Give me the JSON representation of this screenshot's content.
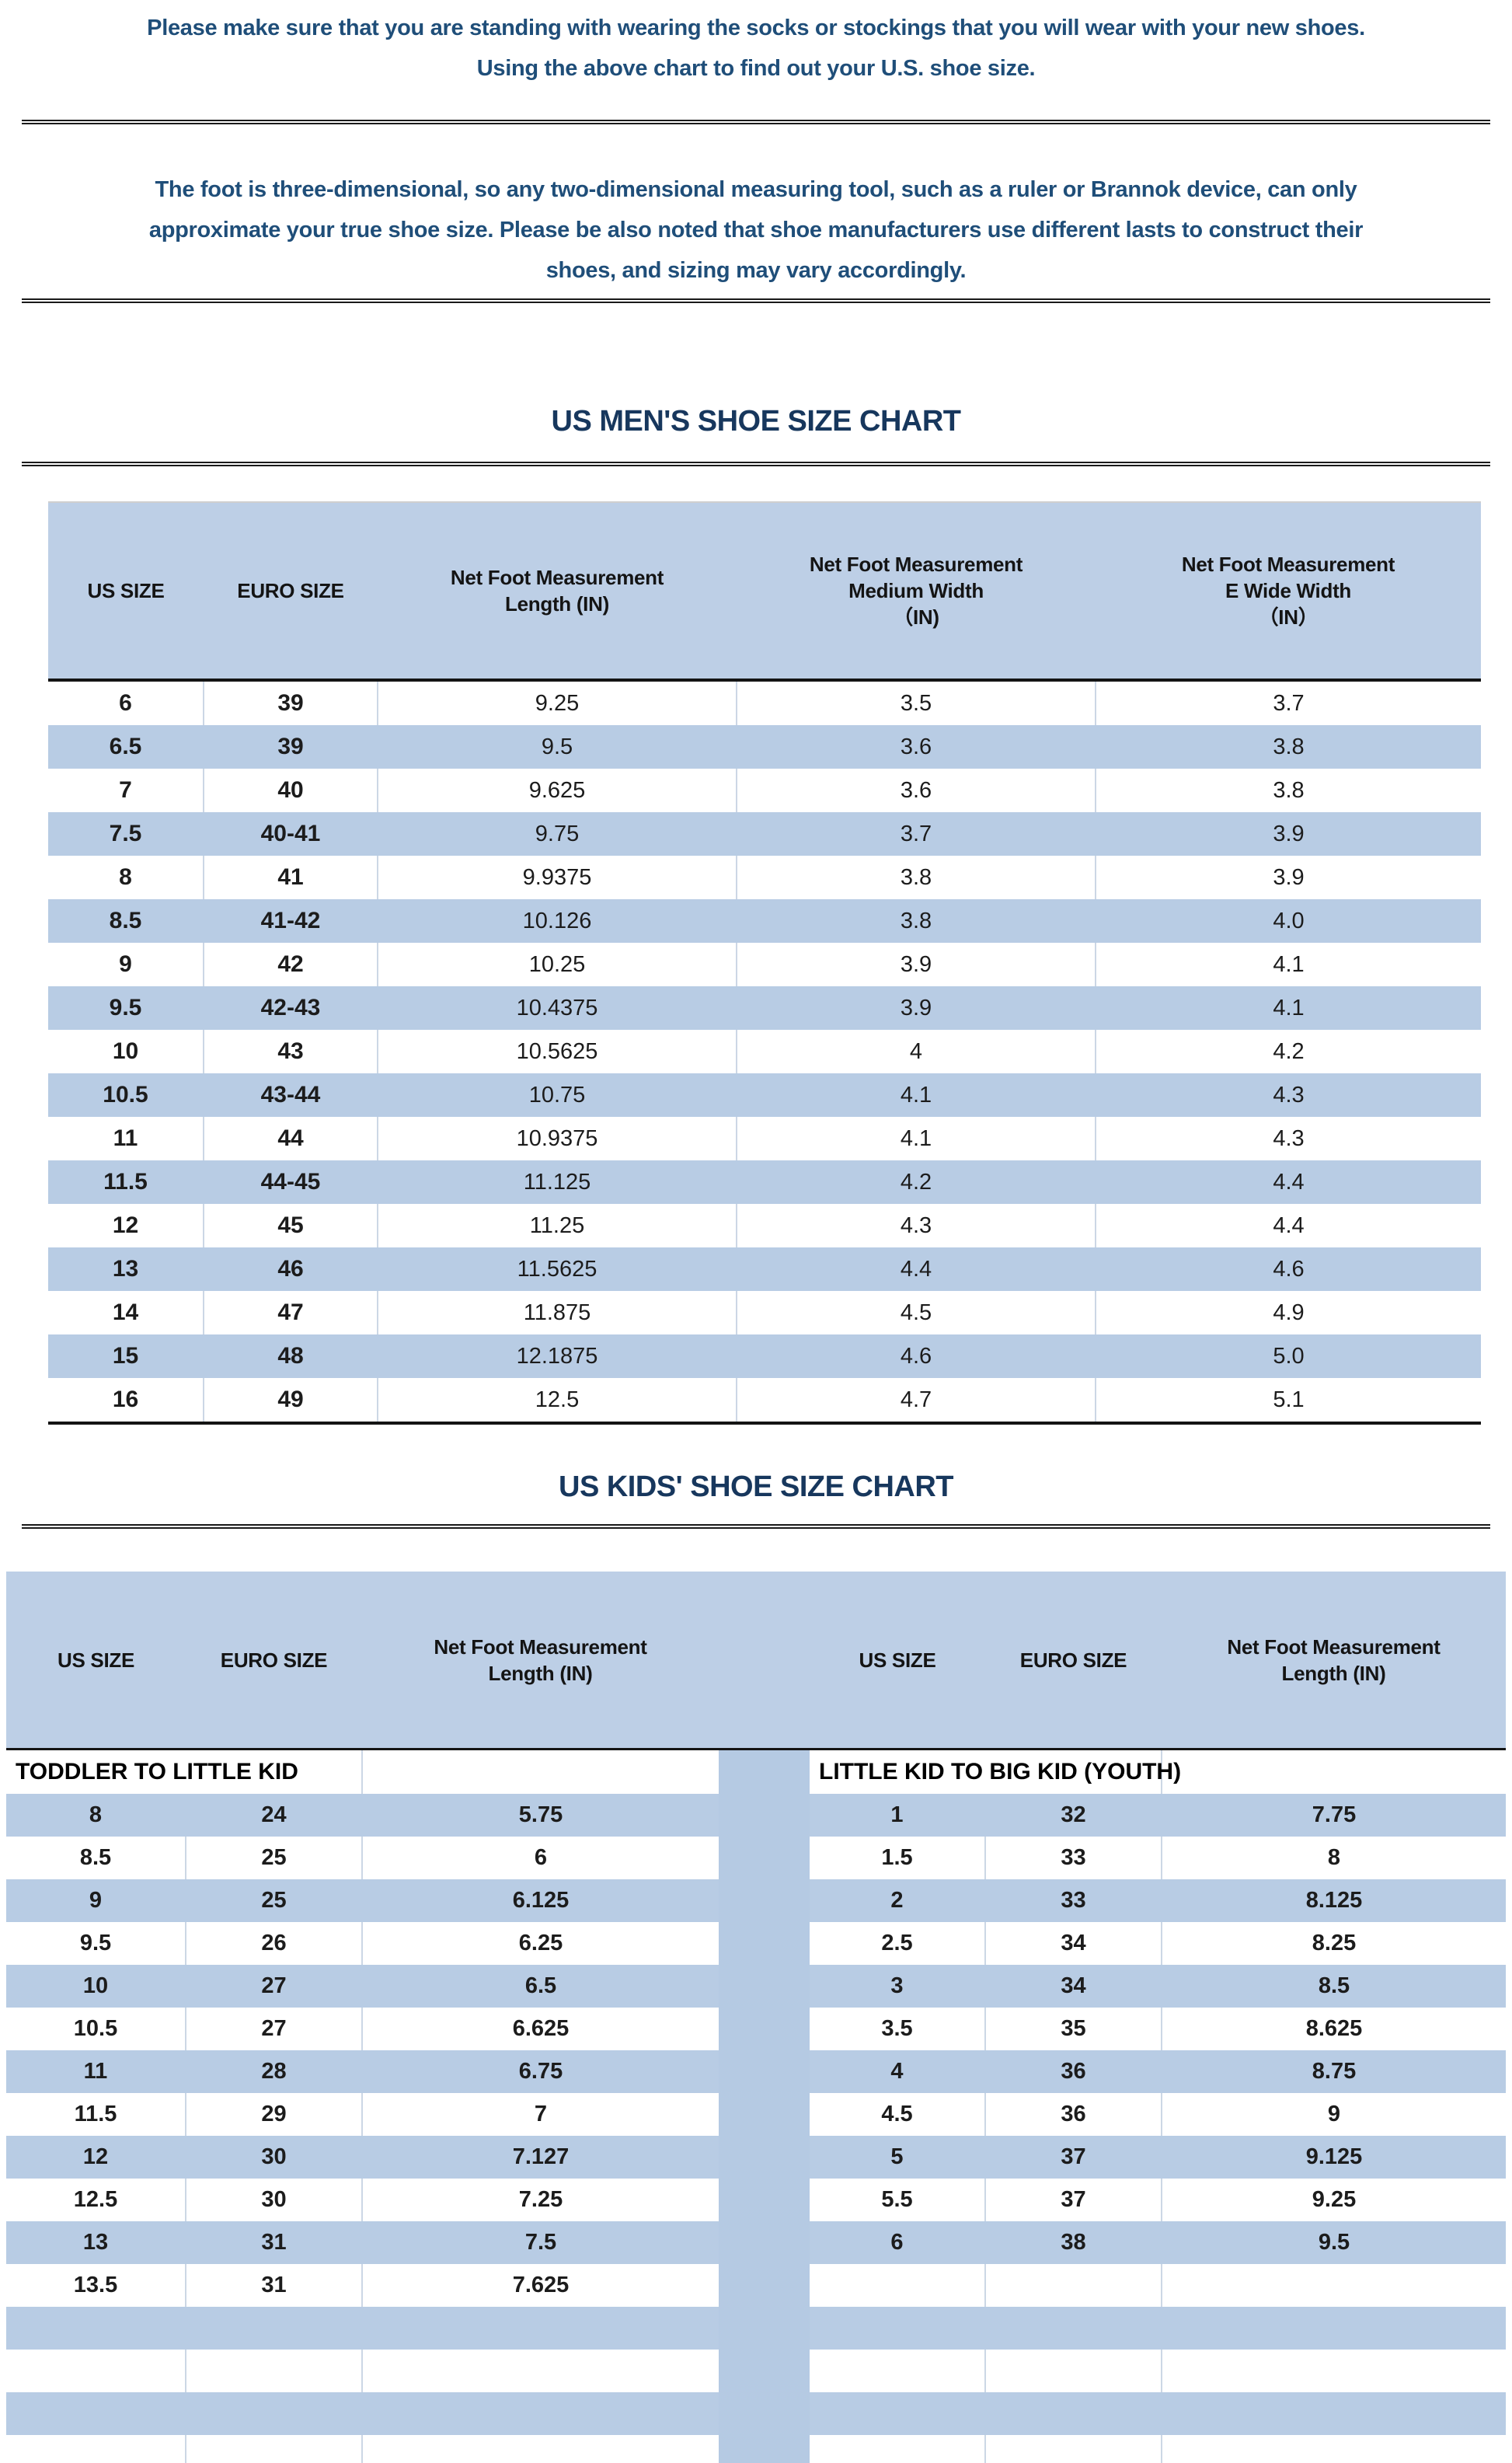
{
  "intro_note": {
    "line1": "Please make sure that you are standing with wearing the socks or stockings that you will wear with your new shoes.",
    "line2": "Using the above chart to find out your U.S. shoe size."
  },
  "measuring_note": {
    "line1": "The foot is three-dimensional, so any two-dimensional measuring tool, such as a ruler or Brannok device, can only",
    "line2": "approximate your true shoe size. Please be also noted that shoe manufacturers use different lasts to construct their",
    "line3": "shoes, and sizing may vary accordingly."
  },
  "mens_chart": {
    "title": "US MEN'S SHOE SIZE CHART",
    "columns": [
      "US SIZE",
      "EURO SIZE",
      "Net Foot Measurement\nLength (IN)",
      "Net Foot Measurement\nMedium Width\n（IN)",
      "Net Foot Measurement\nE Wide Width\n（IN）"
    ],
    "rows": [
      [
        "6",
        "39",
        "9.25",
        "3.5",
        "3.7"
      ],
      [
        "6.5",
        "39",
        "9.5",
        "3.6",
        "3.8"
      ],
      [
        "7",
        "40",
        "9.625",
        "3.6",
        "3.8"
      ],
      [
        "7.5",
        "40-41",
        "9.75",
        "3.7",
        "3.9"
      ],
      [
        "8",
        "41",
        "9.9375",
        "3.8",
        "3.9"
      ],
      [
        "8.5",
        "41-42",
        "10.126",
        "3.8",
        "4.0"
      ],
      [
        "9",
        "42",
        "10.25",
        "3.9",
        "4.1"
      ],
      [
        "9.5",
        "42-43",
        "10.4375",
        "3.9",
        "4.1"
      ],
      [
        "10",
        "43",
        "10.5625",
        "4",
        "4.2"
      ],
      [
        "10.5",
        "43-44",
        "10.75",
        "4.1",
        "4.3"
      ],
      [
        "11",
        "44",
        "10.9375",
        "4.1",
        "4.3"
      ],
      [
        "11.5",
        "44-45",
        "11.125",
        "4.2",
        "4.4"
      ],
      [
        "12",
        "45",
        "11.25",
        "4.3",
        "4.4"
      ],
      [
        "13",
        "46",
        "11.5625",
        "4.4",
        "4.6"
      ],
      [
        "14",
        "47",
        "11.875",
        "4.5",
        "4.9"
      ],
      [
        "15",
        "48",
        "12.1875",
        "4.6",
        "5.0"
      ],
      [
        "16",
        "49",
        "12.5",
        "4.7",
        "5.1"
      ]
    ]
  },
  "kids_chart": {
    "title": "US KIDS' SHOE SIZE CHART",
    "left_columns": [
      "US SIZE",
      "EURO SIZE",
      "Net Foot Measurement\nLength (IN)"
    ],
    "right_columns": [
      "US SIZE",
      "EURO SIZE",
      "Net Foot Measurement\nLength (IN)"
    ],
    "left_section_label": "TODDLER TO LITTLE KID",
    "right_section_label": "LITTLE KID TO BIG KID (YOUTH)",
    "left_rows": [
      [
        "8",
        "24",
        "5.75"
      ],
      [
        "8.5",
        "25",
        "6"
      ],
      [
        "9",
        "25",
        "6.125"
      ],
      [
        "9.5",
        "26",
        "6.25"
      ],
      [
        "10",
        "27",
        "6.5"
      ],
      [
        "10.5",
        "27",
        "6.625"
      ],
      [
        "11",
        "28",
        "6.75"
      ],
      [
        "11.5",
        "29",
        "7"
      ],
      [
        "12",
        "30",
        "7.127"
      ],
      [
        "12.5",
        "30",
        "7.25"
      ],
      [
        "13",
        "31",
        "7.5"
      ],
      [
        "13.5",
        "31",
        "7.625"
      ],
      [
        "",
        "",
        ""
      ],
      [
        "",
        "",
        ""
      ],
      [
        "",
        "",
        ""
      ],
      [
        "",
        "",
        ""
      ]
    ],
    "right_rows": [
      [
        "1",
        "32",
        "7.75"
      ],
      [
        "1.5",
        "33",
        "8"
      ],
      [
        "2",
        "33",
        "8.125"
      ],
      [
        "2.5",
        "34",
        "8.25"
      ],
      [
        "3",
        "34",
        "8.5"
      ],
      [
        "3.5",
        "35",
        "8.625"
      ],
      [
        "4",
        "36",
        "8.75"
      ],
      [
        "4.5",
        "36",
        "9"
      ],
      [
        "5",
        "37",
        "9.125"
      ],
      [
        "5.5",
        "37",
        "9.25"
      ],
      [
        "6",
        "38",
        "9.5"
      ],
      [
        "",
        "",
        ""
      ],
      [
        "",
        "",
        ""
      ],
      [
        "",
        "",
        ""
      ],
      [
        "",
        "",
        ""
      ],
      [
        "",
        "",
        ""
      ]
    ]
  },
  "colors": {
    "paragraph_navy": "#1f4e79",
    "title_navy": "#17375d",
    "header_band_blue": "#bdcfe6",
    "stripe_blue": "#b8cce4",
    "divider_blue": "#b5cae3",
    "rule_black": "#1a1a1a"
  }
}
